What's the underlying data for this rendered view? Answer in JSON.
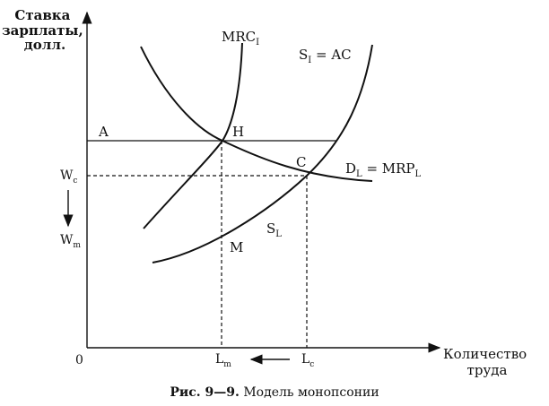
{
  "y_axis_title": [
    "Ставка",
    "зарплаты,",
    "долл."
  ],
  "x_axis_title": [
    "Количество",
    "труда"
  ],
  "origin": "0",
  "curves": {
    "mrc": {
      "main": "MRC",
      "sub": "I"
    },
    "supply_ac": {
      "main": "S",
      "sub": "I",
      "rest": " = AC"
    },
    "demand_mrp": {
      "main": "D",
      "sub": "L",
      "rest": " = MRP",
      "sub2": "L"
    },
    "supply_l": {
      "main": "S",
      "sub": "L"
    }
  },
  "points": {
    "a": "A",
    "h": "H",
    "c": "C",
    "m": "M"
  },
  "y_ticks": {
    "wc": {
      "main": "W",
      "sub": "c"
    },
    "wm": {
      "main": "W",
      "sub": "m"
    }
  },
  "x_ticks": {
    "lm": {
      "main": "L",
      "sub": "m"
    },
    "lc": {
      "main": "L",
      "sub": "c"
    }
  },
  "caption": {
    "bold": "Рис. 9—9.",
    "text": " Модель монопсонии"
  }
}
